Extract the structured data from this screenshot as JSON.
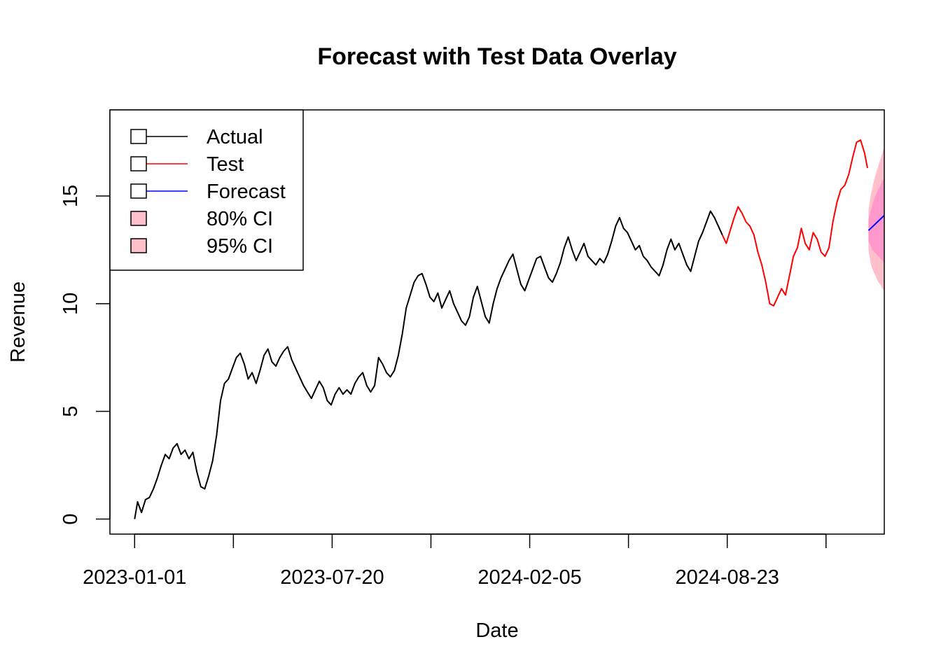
{
  "chart_data": {
    "type": "line",
    "title": "Forecast with Test Data Overlay",
    "xlabel": "Date",
    "ylabel": "Revenue",
    "x_type": "date",
    "xlim": [
      "2022-12-07",
      "2025-01-29"
    ],
    "ylim": [
      -0.7,
      19.0
    ],
    "x_ticks": [
      "2023-01-01",
      "2023-04-11",
      "2023-07-20",
      "2023-10-28",
      "2024-02-05",
      "2024-05-15",
      "2024-08-23",
      "2024-12-01"
    ],
    "x_tick_labels": [
      "2023-01-01",
      "",
      "2023-07-20",
      "",
      "2024-02-05",
      "",
      "2024-08-23",
      ""
    ],
    "y_ticks": [
      0,
      5,
      10,
      15
    ],
    "y_tick_labels": [
      "0",
      "5",
      "10",
      "15"
    ],
    "grid": false,
    "legend_position": "top-left",
    "legend": [
      {
        "label": "Actual",
        "color": "#000000",
        "kind": "line"
      },
      {
        "label": "Test",
        "color": "#ff0000",
        "kind": "line"
      },
      {
        "label": "Forecast",
        "color": "#0000ff",
        "kind": "line"
      },
      {
        "label": "80% CI",
        "color": "#ffc0cb",
        "kind": "fill"
      },
      {
        "label": "95% CI",
        "color": "#ffc0cb",
        "kind": "fill"
      }
    ],
    "series": [
      {
        "name": "Actual",
        "color": "#000000",
        "points": [
          [
            "2023-01-01",
            0.0
          ],
          [
            "2023-01-04",
            0.8
          ],
          [
            "2023-01-08",
            0.3
          ],
          [
            "2023-01-12",
            0.9
          ],
          [
            "2023-01-16",
            1.0
          ],
          [
            "2023-01-20",
            1.4
          ],
          [
            "2023-01-24",
            1.9
          ],
          [
            "2023-01-28",
            2.5
          ],
          [
            "2023-02-01",
            3.0
          ],
          [
            "2023-02-05",
            2.8
          ],
          [
            "2023-02-09",
            3.3
          ],
          [
            "2023-02-13",
            3.5
          ],
          [
            "2023-02-17",
            3.0
          ],
          [
            "2023-02-21",
            3.2
          ],
          [
            "2023-02-25",
            2.8
          ],
          [
            "2023-03-01",
            3.1
          ],
          [
            "2023-03-05",
            2.2
          ],
          [
            "2023-03-09",
            1.5
          ],
          [
            "2023-03-13",
            1.4
          ],
          [
            "2023-03-17",
            2.0
          ],
          [
            "2023-03-21",
            2.7
          ],
          [
            "2023-03-25",
            3.9
          ],
          [
            "2023-03-29",
            5.5
          ],
          [
            "2023-04-02",
            6.3
          ],
          [
            "2023-04-06",
            6.5
          ],
          [
            "2023-04-10",
            7.0
          ],
          [
            "2023-04-14",
            7.5
          ],
          [
            "2023-04-18",
            7.7
          ],
          [
            "2023-04-22",
            7.2
          ],
          [
            "2023-04-26",
            6.5
          ],
          [
            "2023-04-30",
            6.8
          ],
          [
            "2023-05-04",
            6.3
          ],
          [
            "2023-05-08",
            6.9
          ],
          [
            "2023-05-12",
            7.6
          ],
          [
            "2023-05-16",
            7.9
          ],
          [
            "2023-05-20",
            7.3
          ],
          [
            "2023-05-24",
            7.1
          ],
          [
            "2023-05-28",
            7.5
          ],
          [
            "2023-06-01",
            7.8
          ],
          [
            "2023-06-05",
            8.0
          ],
          [
            "2023-06-09",
            7.4
          ],
          [
            "2023-06-13",
            7.0
          ],
          [
            "2023-06-17",
            6.6
          ],
          [
            "2023-06-21",
            6.2
          ],
          [
            "2023-06-25",
            5.9
          ],
          [
            "2023-06-29",
            5.6
          ],
          [
            "2023-07-03",
            6.0
          ],
          [
            "2023-07-07",
            6.4
          ],
          [
            "2023-07-11",
            6.1
          ],
          [
            "2023-07-15",
            5.5
          ],
          [
            "2023-07-19",
            5.3
          ],
          [
            "2023-07-23",
            5.8
          ],
          [
            "2023-07-27",
            6.1
          ],
          [
            "2023-07-31",
            5.8
          ],
          [
            "2023-08-04",
            6.0
          ],
          [
            "2023-08-08",
            5.8
          ],
          [
            "2023-08-12",
            6.3
          ],
          [
            "2023-08-16",
            6.6
          ],
          [
            "2023-08-20",
            6.8
          ],
          [
            "2023-08-24",
            6.2
          ],
          [
            "2023-08-28",
            5.9
          ],
          [
            "2023-09-01",
            6.2
          ],
          [
            "2023-09-05",
            7.5
          ],
          [
            "2023-09-09",
            7.2
          ],
          [
            "2023-09-13",
            6.8
          ],
          [
            "2023-09-17",
            6.6
          ],
          [
            "2023-09-21",
            6.9
          ],
          [
            "2023-09-25",
            7.6
          ],
          [
            "2023-09-29",
            8.6
          ],
          [
            "2023-10-03",
            9.8
          ],
          [
            "2023-10-07",
            10.4
          ],
          [
            "2023-10-11",
            11.0
          ],
          [
            "2023-10-15",
            11.3
          ],
          [
            "2023-10-19",
            11.4
          ],
          [
            "2023-10-23",
            10.9
          ],
          [
            "2023-10-27",
            10.3
          ],
          [
            "2023-10-31",
            10.1
          ],
          [
            "2023-11-04",
            10.5
          ],
          [
            "2023-11-08",
            9.8
          ],
          [
            "2023-11-12",
            10.2
          ],
          [
            "2023-11-16",
            10.6
          ],
          [
            "2023-11-20",
            10.0
          ],
          [
            "2023-11-24",
            9.6
          ],
          [
            "2023-11-28",
            9.2
          ],
          [
            "2023-12-02",
            9.0
          ],
          [
            "2023-12-06",
            9.4
          ],
          [
            "2023-12-10",
            10.3
          ],
          [
            "2023-12-14",
            10.8
          ],
          [
            "2023-12-18",
            10.1
          ],
          [
            "2023-12-22",
            9.4
          ],
          [
            "2023-12-26",
            9.1
          ],
          [
            "2023-12-30",
            10.0
          ],
          [
            "2024-01-03",
            10.7
          ],
          [
            "2024-01-07",
            11.2
          ],
          [
            "2024-01-11",
            11.6
          ],
          [
            "2024-01-15",
            12.0
          ],
          [
            "2024-01-19",
            12.3
          ],
          [
            "2024-01-23",
            11.6
          ],
          [
            "2024-01-27",
            10.9
          ],
          [
            "2024-01-31",
            10.6
          ],
          [
            "2024-02-04",
            11.1
          ],
          [
            "2024-02-08",
            11.6
          ],
          [
            "2024-02-12",
            12.1
          ],
          [
            "2024-02-16",
            12.2
          ],
          [
            "2024-02-20",
            11.7
          ],
          [
            "2024-02-24",
            11.2
          ],
          [
            "2024-02-28",
            11.0
          ],
          [
            "2024-03-03",
            11.4
          ],
          [
            "2024-03-07",
            11.9
          ],
          [
            "2024-03-11",
            12.6
          ],
          [
            "2024-03-15",
            13.1
          ],
          [
            "2024-03-19",
            12.5
          ],
          [
            "2024-03-23",
            12.0
          ],
          [
            "2024-03-27",
            12.4
          ],
          [
            "2024-03-31",
            12.8
          ],
          [
            "2024-04-04",
            12.2
          ],
          [
            "2024-04-08",
            12.0
          ],
          [
            "2024-04-12",
            11.8
          ],
          [
            "2024-04-16",
            12.1
          ],
          [
            "2024-04-20",
            11.9
          ],
          [
            "2024-04-24",
            12.3
          ],
          [
            "2024-04-28",
            12.9
          ],
          [
            "2024-05-02",
            13.6
          ],
          [
            "2024-05-06",
            14.0
          ],
          [
            "2024-05-10",
            13.5
          ],
          [
            "2024-05-14",
            13.3
          ],
          [
            "2024-05-18",
            12.9
          ],
          [
            "2024-05-22",
            12.5
          ],
          [
            "2024-05-26",
            12.7
          ],
          [
            "2024-05-30",
            12.2
          ],
          [
            "2024-06-03",
            12.0
          ],
          [
            "2024-06-07",
            11.7
          ],
          [
            "2024-06-11",
            11.5
          ],
          [
            "2024-06-15",
            11.3
          ],
          [
            "2024-06-19",
            11.8
          ],
          [
            "2024-06-23",
            12.5
          ],
          [
            "2024-06-27",
            13.0
          ],
          [
            "2024-07-01",
            12.5
          ],
          [
            "2024-07-05",
            12.8
          ],
          [
            "2024-07-09",
            12.3
          ],
          [
            "2024-07-13",
            11.8
          ],
          [
            "2024-07-17",
            11.5
          ],
          [
            "2024-07-21",
            12.2
          ],
          [
            "2024-07-25",
            12.9
          ],
          [
            "2024-07-29",
            13.3
          ],
          [
            "2024-08-02",
            13.8
          ],
          [
            "2024-08-06",
            14.3
          ],
          [
            "2024-08-10",
            14.0
          ],
          [
            "2024-08-14",
            13.6
          ],
          [
            "2024-08-18",
            13.2
          ]
        ]
      },
      {
        "name": "Test",
        "color": "#ff0000",
        "points": [
          [
            "2024-08-18",
            13.2
          ],
          [
            "2024-08-22",
            12.8
          ],
          [
            "2024-08-26",
            13.4
          ],
          [
            "2024-08-30",
            14.0
          ],
          [
            "2024-09-03",
            14.5
          ],
          [
            "2024-09-07",
            14.2
          ],
          [
            "2024-09-11",
            13.8
          ],
          [
            "2024-09-15",
            13.6
          ],
          [
            "2024-09-19",
            13.2
          ],
          [
            "2024-09-23",
            12.4
          ],
          [
            "2024-09-27",
            11.8
          ],
          [
            "2024-10-01",
            11.0
          ],
          [
            "2024-10-05",
            10.0
          ],
          [
            "2024-10-09",
            9.9
          ],
          [
            "2024-10-13",
            10.3
          ],
          [
            "2024-10-17",
            10.7
          ],
          [
            "2024-10-21",
            10.4
          ],
          [
            "2024-10-25",
            11.3
          ],
          [
            "2024-10-29",
            12.2
          ],
          [
            "2024-11-02",
            12.6
          ],
          [
            "2024-11-06",
            13.5
          ],
          [
            "2024-11-10",
            12.8
          ],
          [
            "2024-11-14",
            12.5
          ],
          [
            "2024-11-18",
            13.3
          ],
          [
            "2024-11-22",
            13.0
          ],
          [
            "2024-11-26",
            12.4
          ],
          [
            "2024-11-30",
            12.2
          ],
          [
            "2024-12-04",
            12.6
          ],
          [
            "2024-12-08",
            13.8
          ],
          [
            "2024-12-12",
            14.7
          ],
          [
            "2024-12-16",
            15.3
          ],
          [
            "2024-12-20",
            15.5
          ],
          [
            "2024-12-24",
            16.0
          ],
          [
            "2024-12-28",
            16.8
          ],
          [
            "2025-01-01",
            17.5
          ],
          [
            "2025-01-05",
            17.6
          ],
          [
            "2025-01-09",
            17.0
          ],
          [
            "2025-01-12",
            16.3
          ]
        ]
      },
      {
        "name": "Forecast",
        "color": "#0000ff",
        "points": [
          [
            "2025-01-13",
            13.4
          ],
          [
            "2025-01-29",
            14.1
          ]
        ]
      }
    ],
    "intervals": [
      {
        "name": "95% CI",
        "color": "#ffc0cb",
        "x": [
          "2025-01-13",
          "2025-01-15",
          "2025-01-17",
          "2025-01-19",
          "2025-01-21",
          "2025-01-23",
          "2025-01-25",
          "2025-01-27",
          "2025-01-29"
        ],
        "upper": [
          14.3,
          15.0,
          15.4,
          15.8,
          16.1,
          16.4,
          16.7,
          17.0,
          17.3
        ],
        "lower": [
          12.5,
          11.9,
          11.6,
          11.4,
          11.2,
          11.0,
          10.9,
          10.7,
          10.6
        ]
      },
      {
        "name": "80% CI",
        "color": "#ff99cc",
        "x": [
          "2025-01-13",
          "2025-01-15",
          "2025-01-17",
          "2025-01-19",
          "2025-01-21",
          "2025-01-23",
          "2025-01-25",
          "2025-01-27",
          "2025-01-29"
        ],
        "upper": [
          13.9,
          14.3,
          14.6,
          14.9,
          15.1,
          15.3,
          15.5,
          15.7,
          15.8
        ],
        "lower": [
          12.9,
          12.7,
          12.5,
          12.4,
          12.3,
          12.2,
          12.1,
          12.0,
          11.9
        ]
      }
    ]
  }
}
